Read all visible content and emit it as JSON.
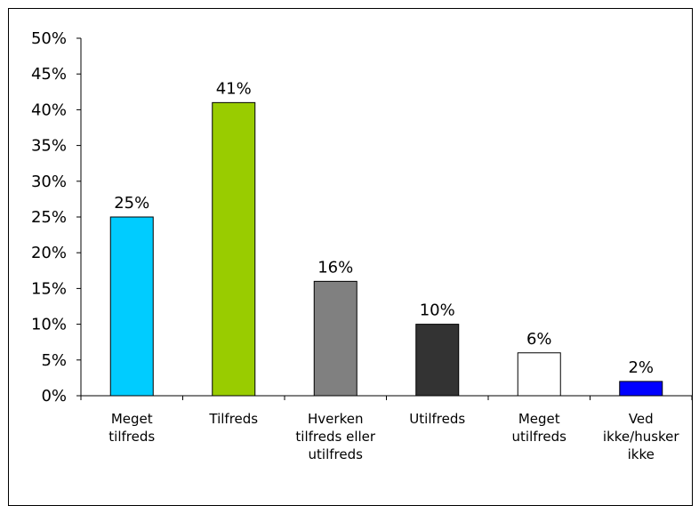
{
  "chart_data": {
    "type": "bar",
    "categories": [
      [
        "Meget",
        "tilfreds"
      ],
      [
        "Tilfreds"
      ],
      [
        "Hverken",
        "tilfreds eller",
        "utilfreds"
      ],
      [
        "Utilfreds"
      ],
      [
        "Meget",
        "utilfreds"
      ],
      [
        "Ved",
        "ikke/husker",
        "ikke"
      ]
    ],
    "values": [
      25,
      41,
      16,
      10,
      6,
      2
    ],
    "value_labels": [
      "25%",
      "41%",
      "16%",
      "10%",
      "6%",
      "2%"
    ],
    "bar_colors": [
      "#00CCFF",
      "#99CC00",
      "#808080",
      "#333333",
      "#FFFFFF",
      "#0000FF"
    ],
    "yticks": [
      "0%",
      "5%",
      "10%",
      "15%",
      "20%",
      "25%",
      "30%",
      "35%",
      "40%",
      "45%",
      "50%"
    ],
    "ylim": [
      0,
      50
    ],
    "grid": false,
    "title": "",
    "xlabel": "",
    "ylabel": ""
  }
}
